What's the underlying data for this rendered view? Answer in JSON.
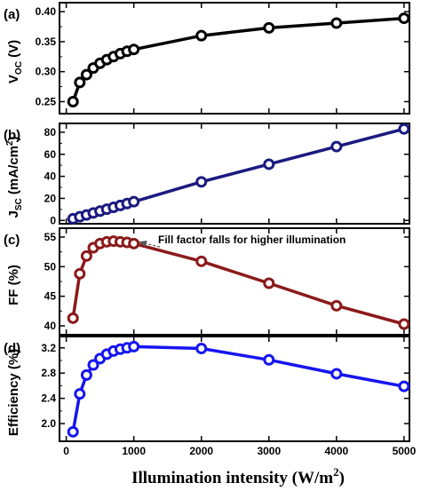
{
  "chart_data": [
    {
      "type": "line",
      "panel_label": "(a)",
      "ylabel": {
        "main": "V",
        "sub": "OC",
        "unit": " (V)"
      },
      "ylim": [
        0.23,
        0.415
      ],
      "yticks": [
        0.25,
        0.3,
        0.35,
        0.4
      ],
      "ytick_labels": [
        "0.25",
        "0.30",
        "0.35",
        "0.40"
      ],
      "color": "#000000",
      "x": [
        100,
        200,
        300,
        400,
        500,
        600,
        700,
        800,
        900,
        1000,
        2000,
        3000,
        4000,
        5000
      ],
      "values": [
        0.25,
        0.282,
        0.295,
        0.306,
        0.314,
        0.32,
        0.325,
        0.33,
        0.334,
        0.337,
        0.36,
        0.373,
        0.381,
        0.389
      ]
    },
    {
      "type": "line",
      "panel_label": "(b)",
      "ylabel": {
        "main": "J",
        "sub": "SC",
        "unit": " (mA/cm",
        "sup": "2",
        "close": ")"
      },
      "ylim": [
        -3,
        88
      ],
      "yticks": [
        0,
        20,
        40,
        60,
        80
      ],
      "ytick_labels": [
        "0",
        "20",
        "40",
        "60",
        "80"
      ],
      "color": "#1a1a80",
      "x": [
        100,
        200,
        300,
        400,
        500,
        600,
        700,
        800,
        900,
        1000,
        2000,
        3000,
        4000,
        5000
      ],
      "values": [
        1.5,
        3.3,
        5,
        6.8,
        8.5,
        10.2,
        11.9,
        13.6,
        15.3,
        17,
        35,
        51,
        67,
        83
      ]
    },
    {
      "type": "line",
      "panel_label": "(c)",
      "ylabel": {
        "main": "FF (%)"
      },
      "ylim": [
        38.5,
        56.5
      ],
      "yticks": [
        40,
        45,
        50,
        55
      ],
      "ytick_labels": [
        "40",
        "45",
        "50",
        "55"
      ],
      "color": "#8b1a1a",
      "annotation": "Fill factor falls for higher illumination",
      "annotation_target": {
        "x": 1000,
        "y": 54.0
      },
      "x": [
        100,
        200,
        300,
        400,
        500,
        600,
        700,
        800,
        900,
        1000,
        2000,
        3000,
        4000,
        5000
      ],
      "values": [
        41.3,
        48.8,
        51.8,
        53.2,
        53.9,
        54.2,
        54.3,
        54.2,
        54.1,
        53.9,
        50.9,
        47.2,
        43.4,
        40.3
      ]
    },
    {
      "type": "line",
      "panel_label": "(d)",
      "ylabel": {
        "main": "Efficiency (%)"
      },
      "ylim": [
        1.72,
        3.38
      ],
      "yticks": [
        2.0,
        2.4,
        2.8,
        3.2
      ],
      "ytick_labels": [
        "2.0",
        "2.4",
        "2.8",
        "3.2"
      ],
      "color": "#1515f0",
      "x": [
        100,
        200,
        300,
        400,
        500,
        600,
        700,
        800,
        900,
        1000,
        2000,
        3000,
        4000,
        5000
      ],
      "values": [
        1.87,
        2.47,
        2.77,
        2.93,
        3.03,
        3.1,
        3.15,
        3.18,
        3.2,
        3.22,
        3.19,
        3.01,
        2.79,
        2.59
      ]
    }
  ],
  "x_axis": {
    "label_main": "Illumination intensity (W/m",
    "label_sup": "2",
    "label_close": ")",
    "xlim": [
      -100,
      5080
    ],
    "ticks": [
      0,
      1000,
      2000,
      3000,
      4000,
      5000
    ],
    "tick_labels": [
      "0",
      "1000",
      "2000",
      "3000",
      "4000",
      "5000"
    ]
  }
}
